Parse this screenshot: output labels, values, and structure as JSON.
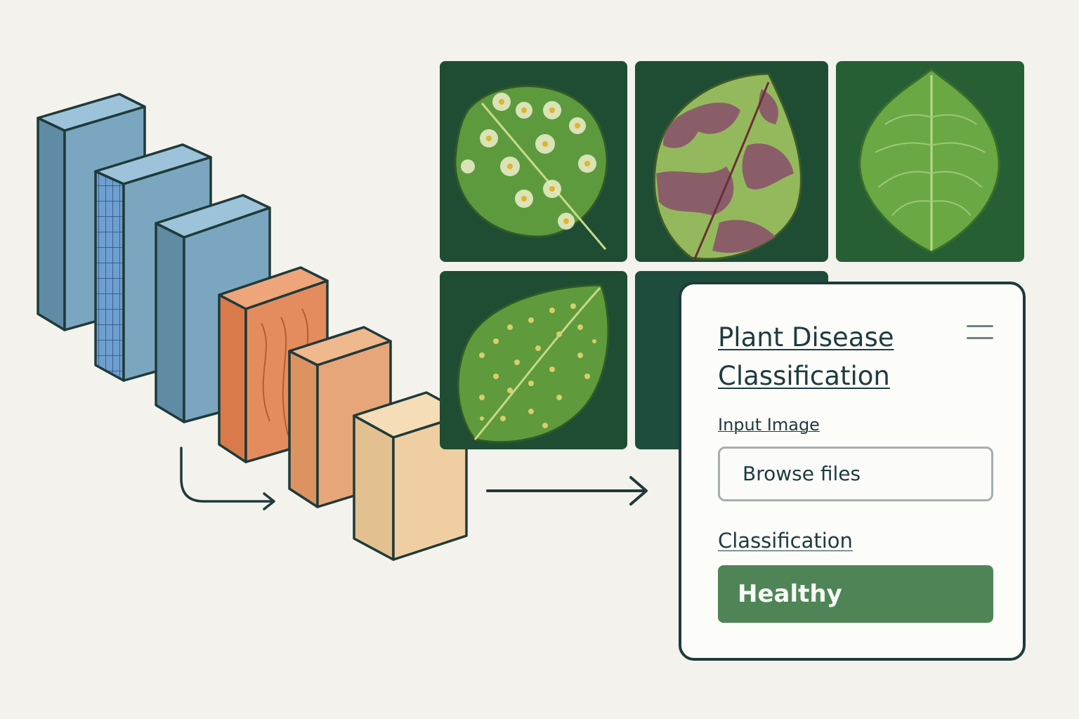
{
  "panel": {
    "title": "Plant Disease Classification",
    "input_label": "Input Image",
    "browse_label": "Browse files",
    "classification_label": "Classification",
    "result": "Healthy"
  },
  "leaf_tiles": [
    {
      "id": "leaf-white-spots",
      "description": "green leaf with pale yellow ring spots"
    },
    {
      "id": "leaf-blight",
      "description": "leaf with purple-brown blight patches"
    },
    {
      "id": "leaf-healthy",
      "description": "uniform green healthy leaf"
    },
    {
      "id": "leaf-speckled",
      "description": "green leaf with small yellow speckles"
    }
  ],
  "network_blocks": [
    {
      "id": "conv-block-1",
      "color": "#7ba6bf"
    },
    {
      "id": "conv-block-2",
      "color": "#7ba6bf"
    },
    {
      "id": "conv-block-3",
      "color": "#7ba6bf"
    },
    {
      "id": "feature-block-1",
      "color": "#e48c5e"
    },
    {
      "id": "feature-block-2",
      "color": "#e7a679"
    },
    {
      "id": "output-block",
      "color": "#efcfa2"
    }
  ],
  "colors": {
    "background": "#f3f2ec",
    "outline": "#1f3a3a",
    "tile_background": "#1e4d33",
    "result_green": "#4f8556"
  },
  "icons": [
    "menu-icon",
    "arrow-right-icon",
    "curved-arrow-icon"
  ]
}
